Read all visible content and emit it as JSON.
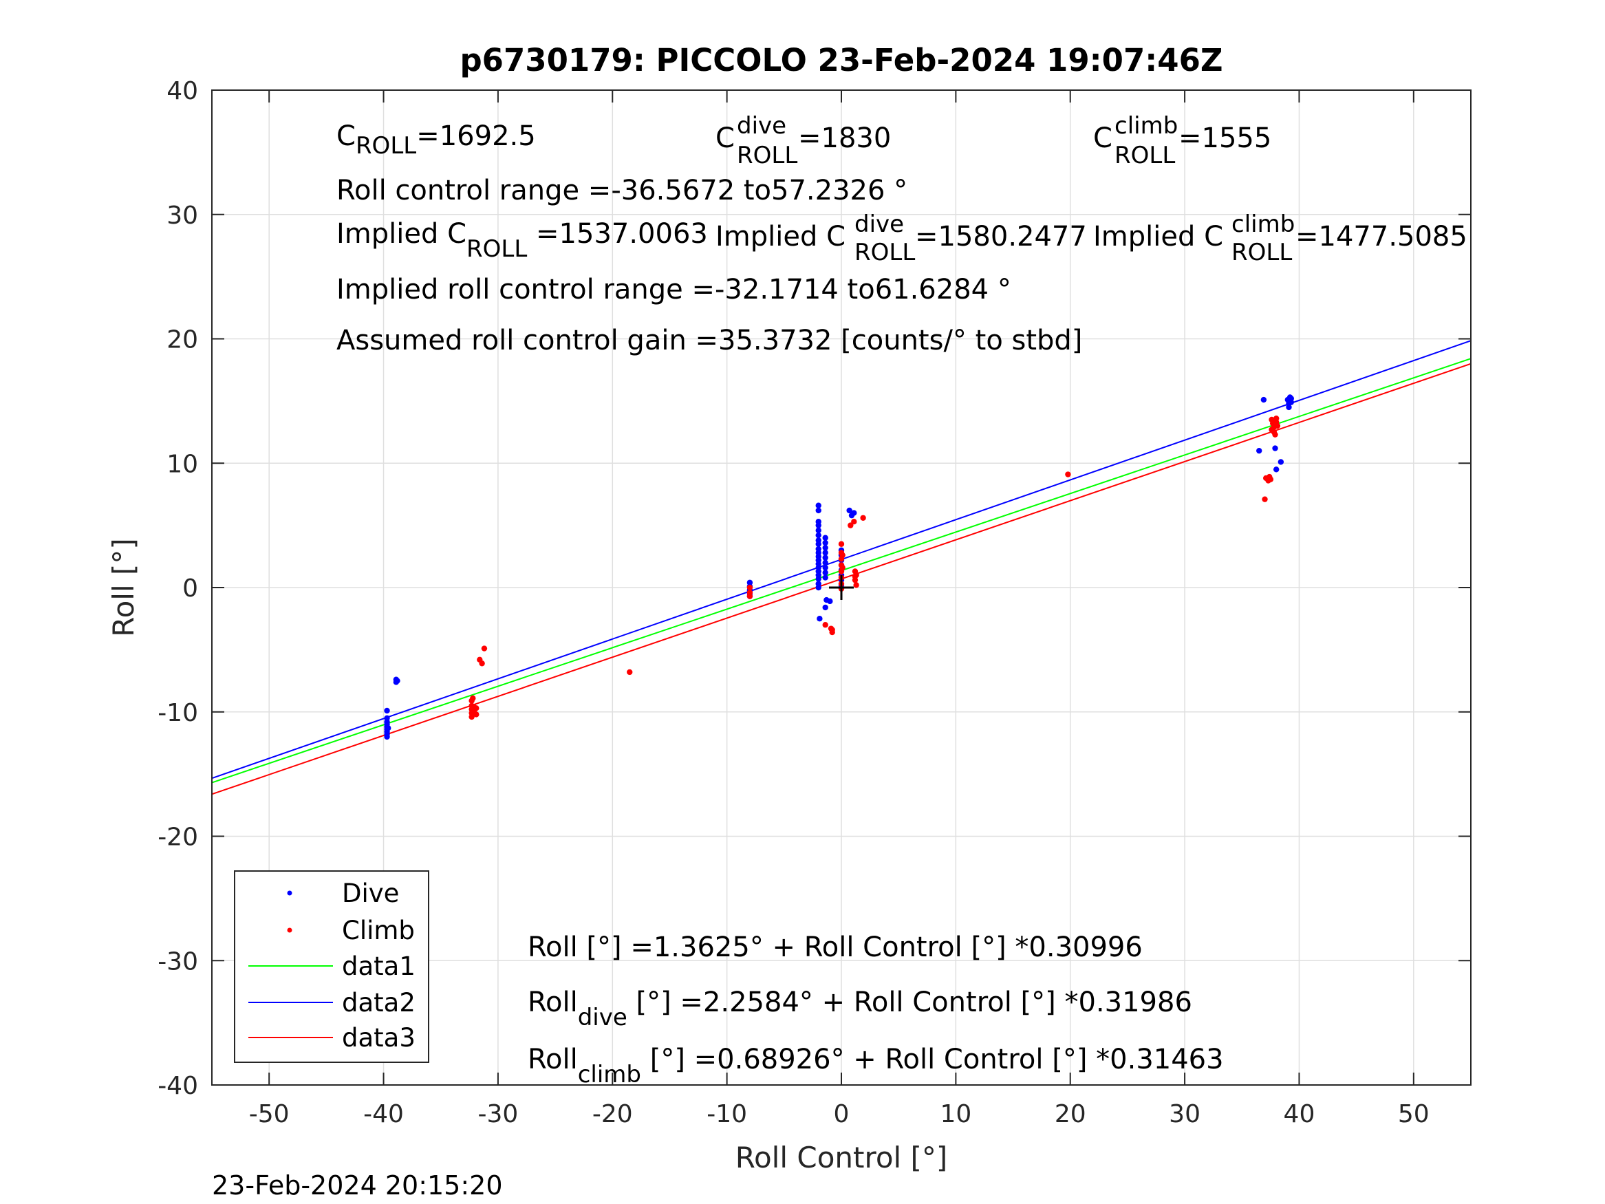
{
  "chart_data": {
    "type": "scatter",
    "title": "p6730179: PICCOLO 23-Feb-2024 19:07:46Z",
    "xlabel": "Roll Control [°]",
    "ylabel": "Roll [°]",
    "xlim": [
      -55,
      55
    ],
    "ylim": [
      -40,
      40
    ],
    "xticks": [
      -50,
      -40,
      -30,
      -20,
      -10,
      0,
      10,
      20,
      30,
      40,
      50
    ],
    "yticks": [
      -40,
      -30,
      -20,
      -10,
      0,
      10,
      20,
      30,
      40
    ],
    "grid": true,
    "legend_position": "bottom-left",
    "colors": {
      "dive": "#0000ff",
      "climb": "#ff0000",
      "data1": "#00ff00",
      "data2": "#0000ff",
      "data3": "#ff0000",
      "center_marker": "#000000"
    },
    "series": [
      {
        "name": "Dive",
        "kind": "scatter",
        "points": [
          [
            -39.7,
            -10.5
          ],
          [
            -39.7,
            -10.8
          ],
          [
            -39.7,
            -11.0
          ],
          [
            -39.7,
            -11.2
          ],
          [
            -39.7,
            -11.4
          ],
          [
            -39.7,
            -11.6
          ],
          [
            -39.7,
            -11.8
          ],
          [
            -39.7,
            -12.0
          ],
          [
            -39.7,
            -9.9
          ],
          [
            -39.6,
            -11.3
          ],
          [
            -38.9,
            -7.4
          ],
          [
            -38.9,
            -7.6
          ],
          [
            -38.8,
            -7.5
          ],
          [
            -8.0,
            0.4
          ],
          [
            -8.0,
            0.1
          ],
          [
            -8.0,
            -0.2
          ],
          [
            -8.0,
            -0.5
          ],
          [
            -8.0,
            -0.7
          ],
          [
            -8.0,
            -0.3
          ],
          [
            -2.0,
            6.6
          ],
          [
            -2.0,
            6.2
          ],
          [
            -2.0,
            5.3
          ],
          [
            -2.0,
            5.0
          ],
          [
            -2.0,
            4.6
          ],
          [
            -2.0,
            4.2
          ],
          [
            -2.0,
            3.8
          ],
          [
            -2.0,
            3.5
          ],
          [
            -2.0,
            3.1
          ],
          [
            -2.0,
            2.8
          ],
          [
            -2.0,
            2.5
          ],
          [
            -2.0,
            2.2
          ],
          [
            -2.0,
            1.9
          ],
          [
            -2.0,
            1.6
          ],
          [
            -2.0,
            1.3
          ],
          [
            -2.0,
            1.0
          ],
          [
            -2.0,
            0.7
          ],
          [
            -2.0,
            0.3
          ],
          [
            -2.0,
            0.0
          ],
          [
            -1.9,
            -2.5
          ],
          [
            -1.4,
            4.0
          ],
          [
            -1.4,
            3.6
          ],
          [
            -1.4,
            3.2
          ],
          [
            -1.4,
            2.8
          ],
          [
            -1.4,
            2.4
          ],
          [
            -1.4,
            2.0
          ],
          [
            -1.4,
            1.6
          ],
          [
            -1.4,
            1.2
          ],
          [
            -1.4,
            0.8
          ],
          [
            -1.4,
            -1.6
          ],
          [
            -1.3,
            -1.0
          ],
          [
            -1.0,
            -1.1
          ],
          [
            0.0,
            3.0
          ],
          [
            0.0,
            2.6
          ],
          [
            0.0,
            2.2
          ],
          [
            0.0,
            1.8
          ],
          [
            0.0,
            1.4
          ],
          [
            0.0,
            1.0
          ],
          [
            0.0,
            0.6
          ],
          [
            0.0,
            0.2
          ],
          [
            0.7,
            6.2
          ],
          [
            1.1,
            6.0
          ],
          [
            0.9,
            5.8
          ],
          [
            36.9,
            15.1
          ],
          [
            36.5,
            11.0
          ],
          [
            37.9,
            11.2
          ],
          [
            38.4,
            10.1
          ],
          [
            38.0,
            9.5
          ],
          [
            39.0,
            15.1
          ],
          [
            39.1,
            14.8
          ],
          [
            39.1,
            14.5
          ],
          [
            39.2,
            15.3
          ],
          [
            39.3,
            14.9
          ],
          [
            39.3,
            15.2
          ]
        ]
      },
      {
        "name": "Climb",
        "kind": "scatter",
        "points": [
          [
            -32.3,
            -9.1
          ],
          [
            -32.3,
            -9.5
          ],
          [
            -32.3,
            -9.8
          ],
          [
            -32.3,
            -10.1
          ],
          [
            -32.3,
            -10.4
          ],
          [
            -32.1,
            -9.6
          ],
          [
            -32.1,
            -10.0
          ],
          [
            -31.9,
            -9.7
          ],
          [
            -31.9,
            -10.2
          ],
          [
            -32.2,
            -8.9
          ],
          [
            -31.6,
            -5.8
          ],
          [
            -31.4,
            -6.1
          ],
          [
            -31.2,
            -4.9
          ],
          [
            -18.5,
            -6.8
          ],
          [
            -8.0,
            0.0
          ],
          [
            -8.0,
            -0.4
          ],
          [
            -8.0,
            -0.7
          ],
          [
            -1.4,
            -3.0
          ],
          [
            -0.9,
            -3.3
          ],
          [
            -0.8,
            -3.6
          ],
          [
            -0.8,
            -3.4
          ],
          [
            0.0,
            3.5
          ],
          [
            0.0,
            2.8
          ],
          [
            0.0,
            2.3
          ],
          [
            0.0,
            1.8
          ],
          [
            0.0,
            1.3
          ],
          [
            0.0,
            0.8
          ],
          [
            0.0,
            0.3
          ],
          [
            0.0,
            -0.1
          ],
          [
            0.1,
            2.6
          ],
          [
            0.1,
            1.6
          ],
          [
            1.2,
            1.3
          ],
          [
            1.2,
            0.9
          ],
          [
            1.2,
            0.6
          ],
          [
            1.3,
            0.2
          ],
          [
            1.3,
            1.0
          ],
          [
            0.8,
            5.0
          ],
          [
            1.1,
            5.3
          ],
          [
            1.9,
            5.6
          ],
          [
            19.8,
            9.1
          ],
          [
            37.0,
            7.1
          ],
          [
            37.1,
            8.8
          ],
          [
            37.3,
            8.6
          ],
          [
            37.5,
            8.7
          ],
          [
            37.4,
            8.9
          ],
          [
            37.6,
            13.5
          ],
          [
            37.7,
            13.2
          ],
          [
            37.8,
            12.9
          ],
          [
            37.8,
            12.5
          ],
          [
            38.0,
            13.6
          ],
          [
            38.0,
            13.3
          ],
          [
            37.6,
            12.7
          ],
          [
            37.9,
            12.3
          ],
          [
            38.1,
            13.0
          ]
        ]
      },
      {
        "name": "data1",
        "kind": "line",
        "x": [
          -55,
          55
        ],
        "y": [
          -15.686,
          18.41
        ]
      },
      {
        "name": "data2",
        "kind": "line",
        "x": [
          -55,
          55
        ],
        "y": [
          -15.334,
          19.851
        ]
      },
      {
        "name": "data3",
        "kind": "line",
        "x": [
          -55,
          55
        ],
        "y": [
          -16.616,
          17.998
        ]
      }
    ],
    "center_marker": {
      "shape": "plus",
      "x": 0,
      "y": 0
    },
    "legend": [
      "Dive",
      "Climb",
      "data1",
      "data2",
      "data3"
    ],
    "annotations": {
      "c_roll": {
        "main": "C",
        "sub": "ROLL",
        "rest": "=1692.5"
      },
      "c_roll_dive": {
        "main": "C",
        "sup": "dive",
        "sub": "ROLL",
        "rest": " =1830"
      },
      "c_roll_climb": {
        "main": "C",
        "sup": "climb",
        "sub": "ROLL",
        "rest": " =1555"
      },
      "roll_control_range": "Roll control range =-36.5672 to57.2326 °",
      "implied_c_roll": {
        "main": "Implied C",
        "sub": "ROLL",
        "rest": " =1537.0063"
      },
      "implied_c_roll_dive": {
        "main": "Implied C",
        "sup": "dive",
        "sub": "ROLL",
        "rest": " =1580.2477"
      },
      "implied_c_roll_climb": {
        "main": "Implied C",
        "sup": "climb",
        "sub": "ROLL",
        "rest": " =1477.5085"
      },
      "implied_roll_control_range": "Implied roll control range =-32.1714 to61.6284 °",
      "assumed_gain": "Assumed roll control gain =35.3732 [counts/° to stbd]",
      "fit_all": "Roll [°] =1.3625° + Roll Control [°] *0.30996",
      "fit_dive": {
        "main": "Roll",
        "sub": "dive",
        "rest": " [°] =2.2584° + Roll Control [°] *0.31986"
      },
      "fit_climb": {
        "main": "Roll",
        "sub": "climb",
        "rest": " [°] =0.68926° + Roll Control [°] *0.31463"
      }
    },
    "timestamp": "23-Feb-2024 20:15:20"
  }
}
